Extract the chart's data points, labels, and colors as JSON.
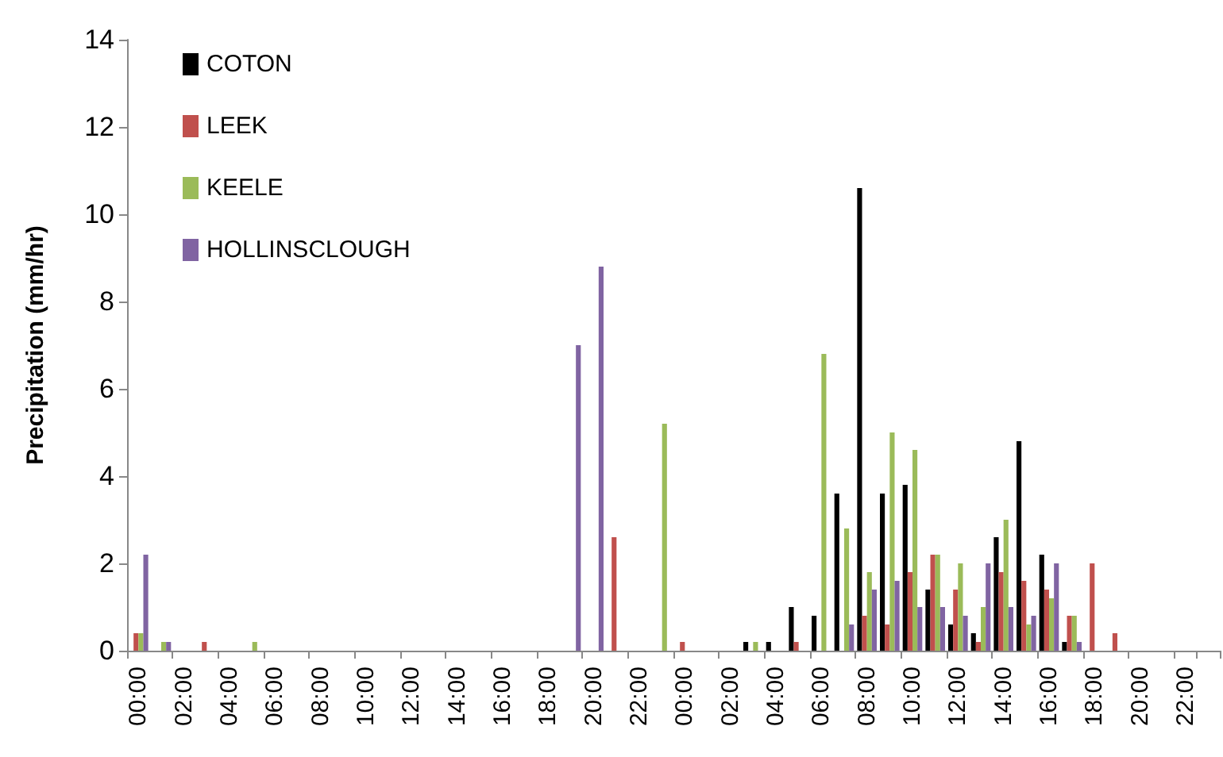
{
  "chart_data": {
    "type": "bar",
    "ylabel": "Precipitation (mm/hr)",
    "categories": [
      "00:00",
      null,
      "02:00",
      null,
      "04:00",
      null,
      "06:00",
      null,
      "08:00",
      null,
      "10:00",
      null,
      "12:00",
      null,
      "14:00",
      null,
      "16:00",
      null,
      "18:00",
      null,
      "20:00",
      null,
      "22:00",
      null,
      "00:00",
      null,
      "02:00",
      null,
      "04:00",
      null,
      "06:00",
      null,
      "08:00",
      null,
      "10:00",
      null,
      "12:00",
      null,
      "14:00",
      null,
      "16:00",
      null,
      "18:00",
      null,
      "20:00",
      null,
      "22:00",
      null
    ],
    "series": [
      {
        "name": "COTON",
        "color": "#000000",
        "values": [
          0,
          0,
          0,
          0,
          0,
          0,
          0,
          0,
          0,
          0,
          0,
          0,
          0,
          0,
          0,
          0,
          0,
          0,
          0,
          0,
          0,
          0,
          0,
          0,
          0,
          0,
          0,
          0.2,
          0.2,
          1.0,
          0.8,
          3.6,
          10.6,
          3.6,
          3.8,
          1.4,
          0.6,
          0.4,
          2.6,
          4.8,
          2.2,
          0.2,
          0,
          0,
          0,
          0,
          0,
          0
        ]
      },
      {
        "name": "LEEK",
        "color": "#c0504d",
        "values": [
          0.4,
          0,
          0,
          0.2,
          0,
          0,
          0,
          0,
          0,
          0,
          0,
          0,
          0,
          0,
          0,
          0,
          0,
          0,
          0,
          0,
          0,
          2.6,
          0,
          0,
          0.2,
          0,
          0,
          0,
          0,
          0.2,
          0,
          0,
          0.8,
          0.6,
          1.8,
          2.2,
          1.4,
          0.2,
          1.8,
          1.6,
          1.4,
          0.8,
          2.0,
          0.4,
          0,
          0,
          0,
          0
        ]
      },
      {
        "name": "KEELE",
        "color": "#9bbb59",
        "values": [
          0.4,
          0.2,
          0,
          0,
          0,
          0.2,
          0,
          0,
          0,
          0,
          0,
          0,
          0,
          0,
          0,
          0,
          0,
          0,
          0,
          0,
          0,
          0,
          0,
          5.2,
          0,
          0,
          0,
          0.2,
          0,
          0,
          6.8,
          2.8,
          1.8,
          5.0,
          4.6,
          2.2,
          2.0,
          1.0,
          3.0,
          0.6,
          1.2,
          0.8,
          0,
          0,
          0,
          0,
          0,
          0
        ]
      },
      {
        "name": "HOLLINSCLOUGH",
        "color": "#8064a2",
        "values": [
          2.2,
          0.2,
          0,
          0,
          0,
          0,
          0,
          0,
          0,
          0,
          0,
          0,
          0,
          0,
          0,
          0,
          0,
          0,
          0,
          7.0,
          8.8,
          0,
          0,
          0,
          0,
          0,
          0,
          0,
          0,
          0,
          0,
          0.6,
          1.4,
          1.6,
          1.0,
          1.0,
          0.8,
          2.0,
          1.0,
          0.8,
          2.0,
          0.2,
          0,
          0,
          0,
          0,
          0,
          0
        ]
      }
    ],
    "ylim": [
      0,
      14
    ],
    "yticks": [
      0,
      2,
      4,
      6,
      8,
      10,
      12,
      14
    ],
    "grid": false,
    "legend": "top left"
  }
}
